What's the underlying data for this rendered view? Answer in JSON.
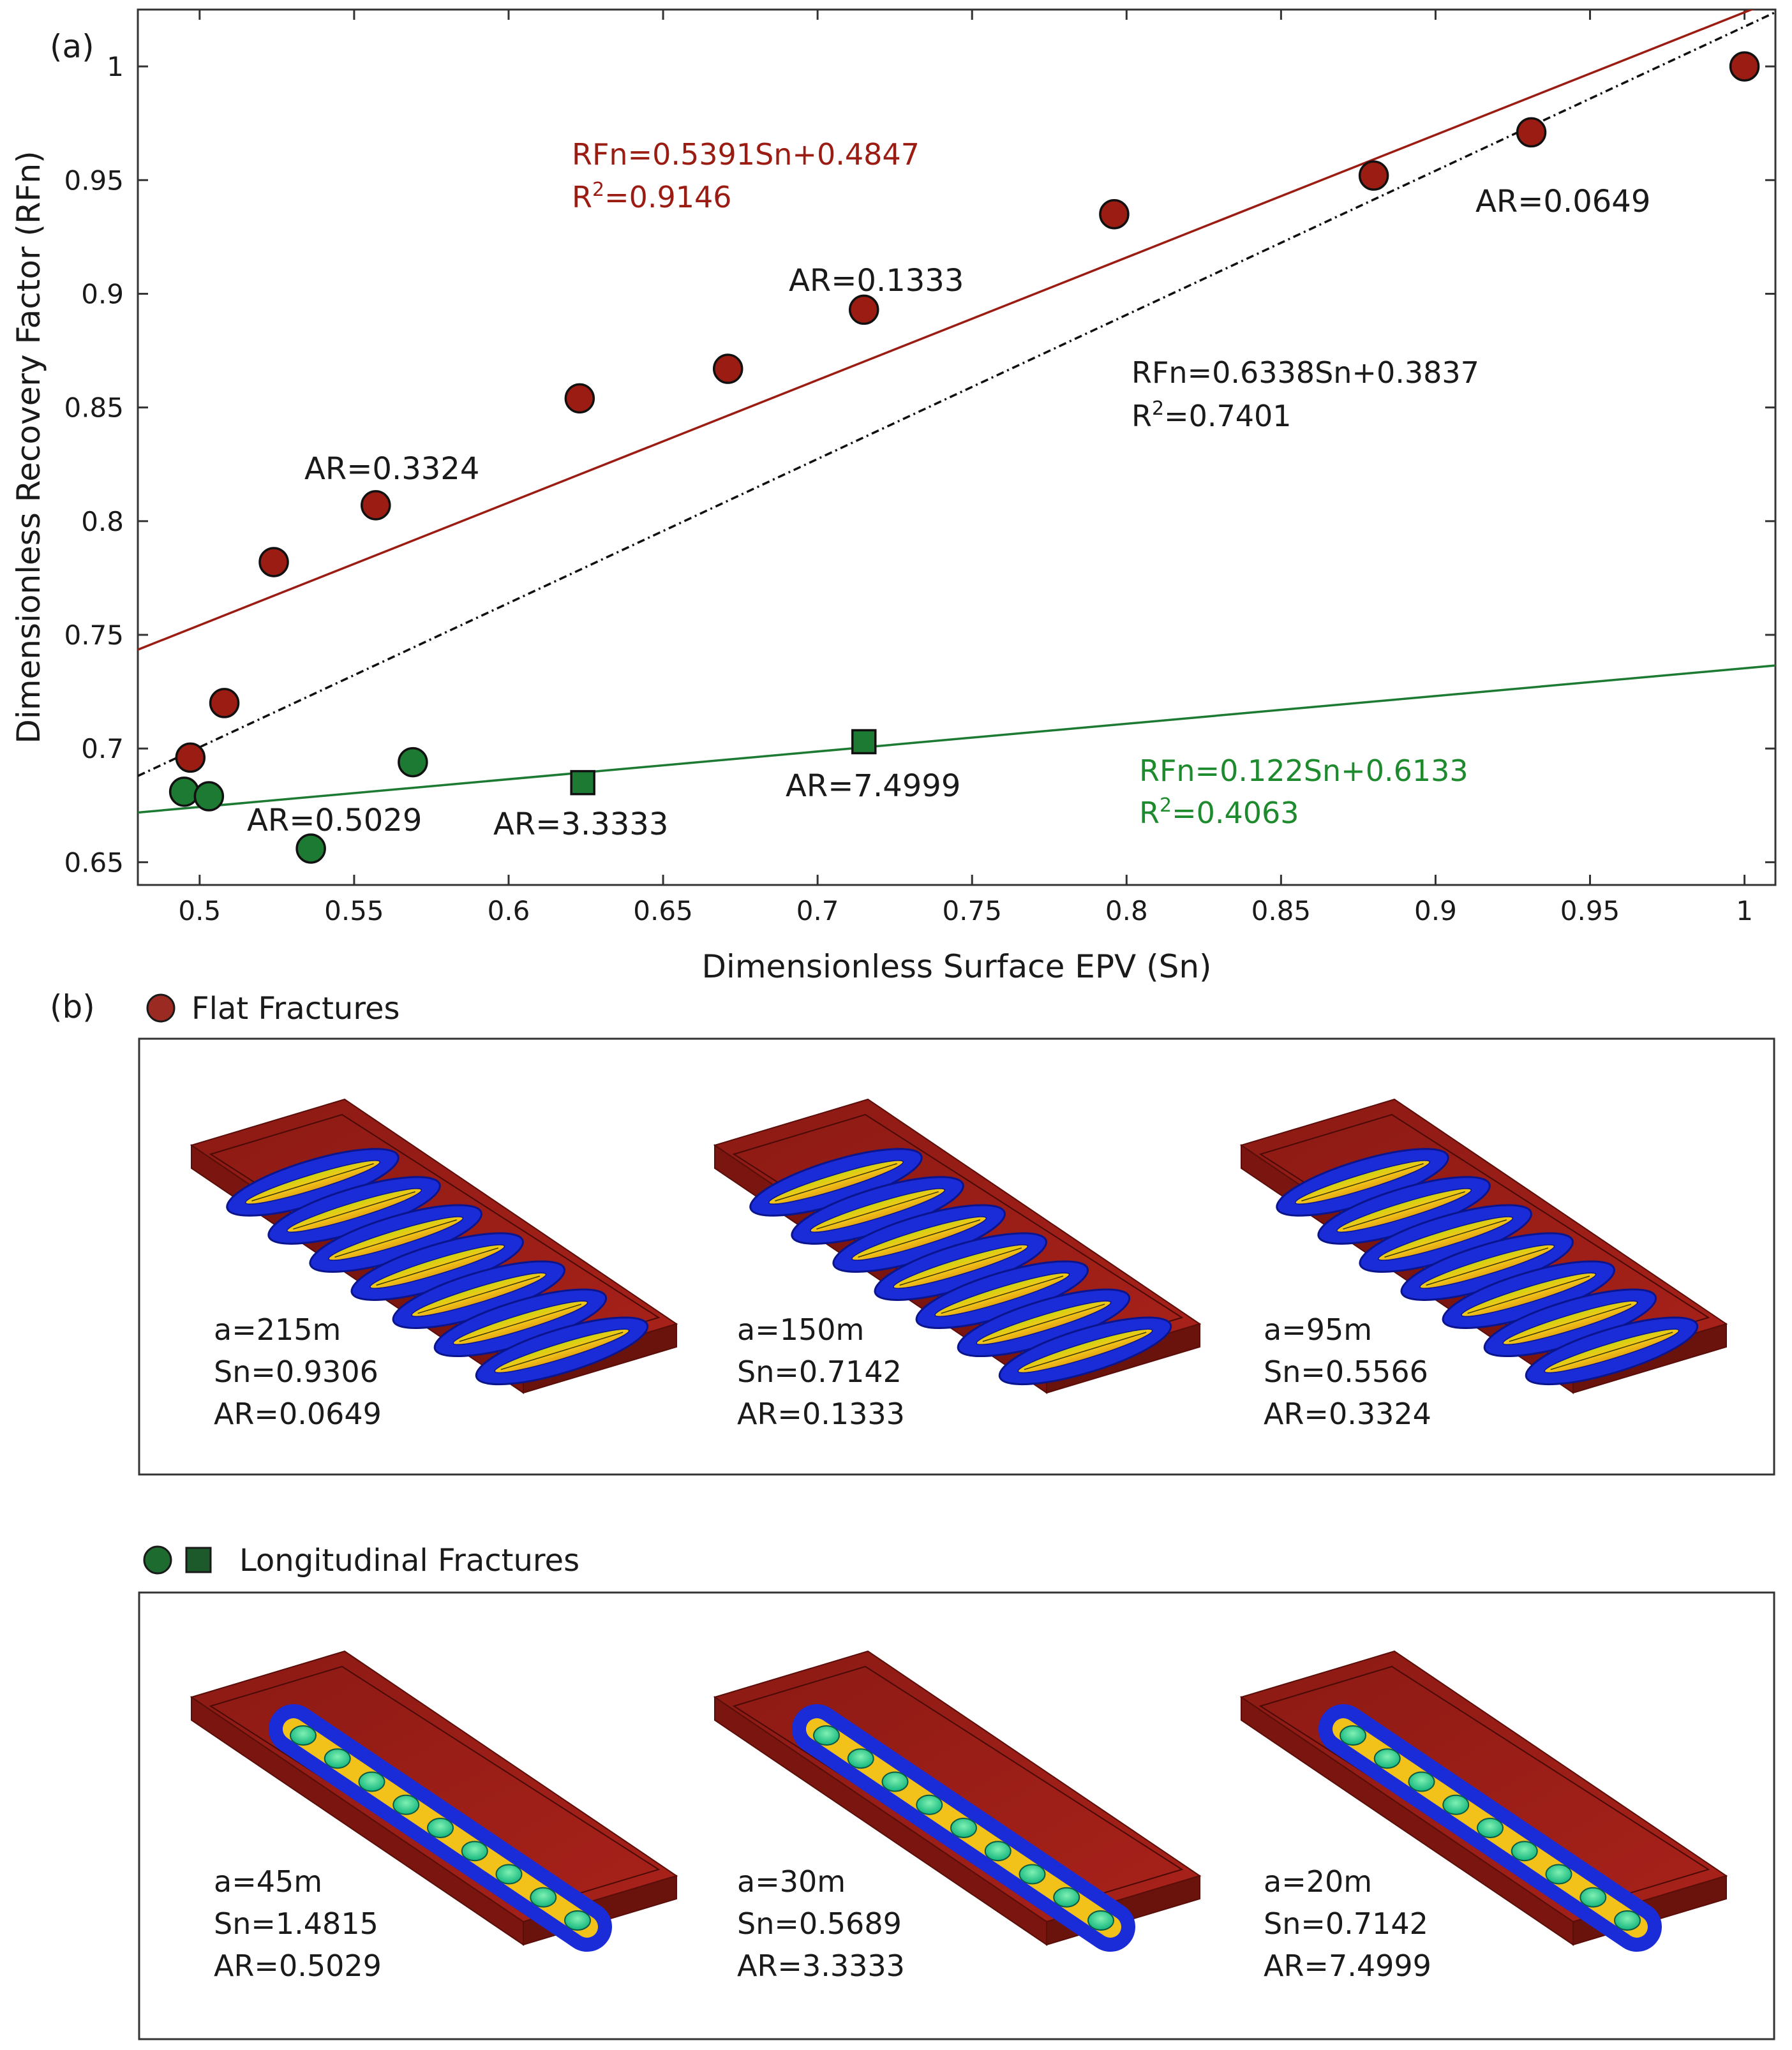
{
  "panel_a_label": "(a)",
  "panel_b_label": "(b)",
  "chart_data": {
    "type": "scatter",
    "xlabel": "Dimensionless Surface EPV (Sn)",
    "ylabel": "Dimensionless Recovery Factor (RFn)",
    "xlim": [
      0.48,
      1.01
    ],
    "ylim": [
      0.64,
      1.025
    ],
    "xticks": [
      0.5,
      0.55,
      0.6,
      0.65,
      0.7,
      0.75,
      0.8,
      0.85,
      0.9,
      0.95,
      1
    ],
    "xtick_labels": [
      "0.5",
      "0.55",
      "0.6",
      "0.65",
      "0.7",
      "0.75",
      "0.8",
      "0.85",
      "0.9",
      "0.95",
      "1"
    ],
    "yticks": [
      0.65,
      0.7,
      0.75,
      0.8,
      0.85,
      0.9,
      0.95,
      1
    ],
    "ytick_labels": [
      "0.65",
      "0.7",
      "0.75",
      "0.8",
      "0.85",
      "0.9",
      "0.95",
      "1"
    ],
    "series": [
      {
        "name": "Flat Fractures",
        "marker": "circle",
        "color": "#9b1c12",
        "x": [
          0.497,
          0.508,
          0.524,
          0.557,
          0.623,
          0.671,
          0.715,
          0.796,
          0.88,
          0.931,
          1.0
        ],
        "y": [
          0.696,
          0.72,
          0.782,
          0.807,
          0.854,
          0.867,
          0.893,
          0.935,
          0.952,
          0.971,
          1.0
        ]
      },
      {
        "name": "Longitudinal Fractures (circles)",
        "marker": "circle",
        "color": "#1d7a32",
        "x": [
          0.495,
          0.503,
          0.536,
          0.569
        ],
        "y": [
          0.681,
          0.679,
          0.656,
          0.694
        ]
      },
      {
        "name": "Longitudinal Fractures (squares)",
        "marker": "square",
        "color": "#1d7a32",
        "x": [
          0.624,
          0.715
        ],
        "y": [
          0.685,
          0.703
        ]
      }
    ],
    "fits": [
      {
        "name": "flat-fit",
        "slope": 0.5391,
        "intercept": 0.4847,
        "color": "#9b1c12",
        "dash": "solid",
        "equation": "RFn=0.5391Sn+0.4847",
        "r2_prefix": "R",
        "r2_sup": "2",
        "r2_value": "=0.9146"
      },
      {
        "name": "overall-fit",
        "slope": 0.6338,
        "intercept": 0.3837,
        "color": "#111111",
        "dash": "dashdot",
        "equation": "RFn=0.6338Sn+0.3837",
        "r2_prefix": "R",
        "r2_sup": "2",
        "r2_value": "=0.7401"
      },
      {
        "name": "longitudinal-fit",
        "slope": 0.122,
        "intercept": 0.6133,
        "color": "#1d7a32",
        "dash": "solid",
        "equation": "RFn=0.122Sn+0.6133",
        "r2_prefix": "R",
        "r2_sup": "2",
        "r2_value": "=0.4063"
      }
    ],
    "annotations": [
      "AR=0.0649",
      "AR=0.1333",
      "AR=0.3324",
      "AR=0.5029",
      "AR=3.3333",
      "AR=7.4999"
    ]
  },
  "flat": {
    "legend": "Flat Fractures",
    "models": [
      {
        "a": "a=215m",
        "sn": "Sn=0.9306",
        "ar": "AR=0.0649"
      },
      {
        "a": "a=150m",
        "sn": "Sn=0.7142",
        "ar": "AR=0.1333"
      },
      {
        "a": "a=95m",
        "sn": "Sn=0.5566",
        "ar": "AR=0.3324"
      }
    ]
  },
  "longitudinal": {
    "legend": "Longitudinal Fractures",
    "models": [
      {
        "a": "a=45m",
        "sn": "Sn=1.4815",
        "ar": "AR=0.5029"
      },
      {
        "a": "a=30m",
        "sn": "Sn=0.5689",
        "ar": "AR=3.3333"
      },
      {
        "a": "a=20m",
        "sn": "Sn=0.7142",
        "ar": "AR=7.4999"
      }
    ]
  }
}
